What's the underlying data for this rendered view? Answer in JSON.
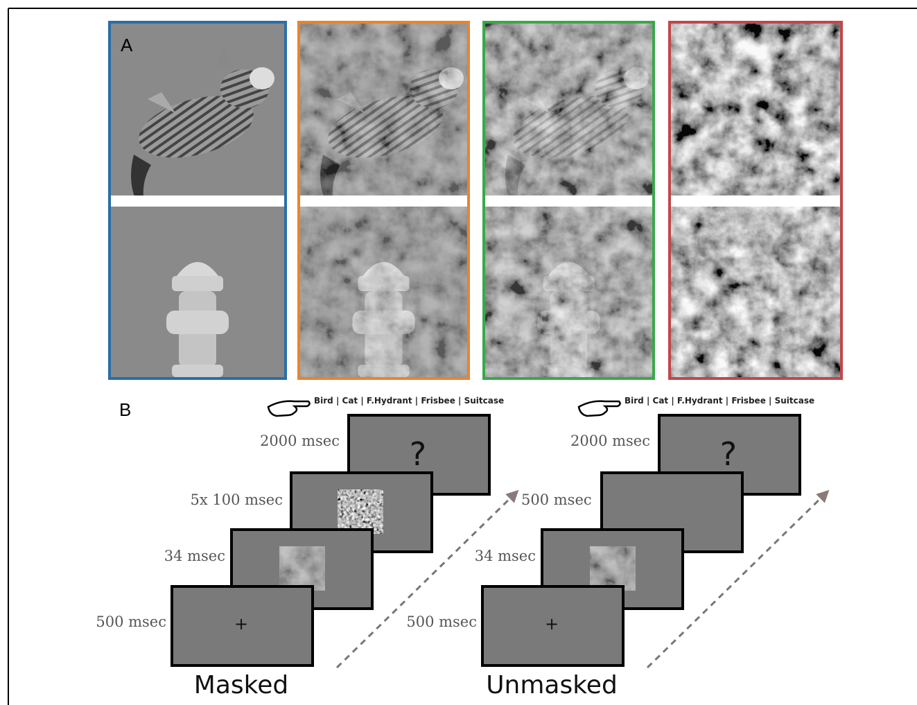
{
  "panel_a": {
    "label": "A"
  },
  "panel_b": {
    "label": "B",
    "sequences": [
      {
        "title": "Masked",
        "response_options": "Bird | Cat | F.Hydrant | Frisbee | Suitcase",
        "frames": [
          {
            "duration": "2000 msec",
            "symbol": "?"
          },
          {
            "duration": "5x 100 msec"
          },
          {
            "duration": "34 msec"
          },
          {
            "duration": "500 msec",
            "symbol": "+"
          }
        ]
      },
      {
        "title": "Unmasked",
        "response_options": "Bird | Cat | F.Hydrant | Frisbee | Suitcase",
        "frames": [
          {
            "duration": "2000 msec",
            "symbol": "?"
          },
          {
            "duration": "500 msec"
          },
          {
            "duration": "34 msec"
          },
          {
            "duration": "500 msec",
            "symbol": "+"
          }
        ]
      }
    ]
  }
}
